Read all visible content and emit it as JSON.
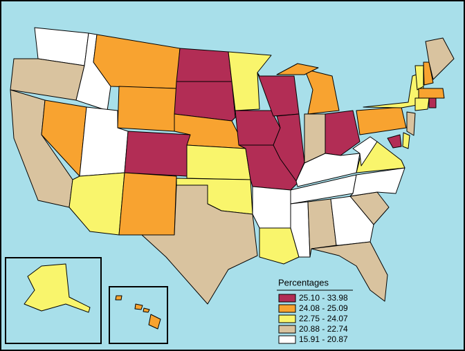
{
  "legend": {
    "title": "Percentages",
    "items": [
      {
        "label": "25.10 - 33.98",
        "color": "#b22d55"
      },
      {
        "label": "24.08 - 25.09",
        "color": "#f8a330"
      },
      {
        "label": "22.75 - 24.07",
        "color": "#f9f56c"
      },
      {
        "label": "20.88 - 22.74",
        "color": "#d9c39f"
      },
      {
        "label": "15.91 - 20.87",
        "color": "#ffffff"
      }
    ]
  },
  "background": "#a8dfea"
}
